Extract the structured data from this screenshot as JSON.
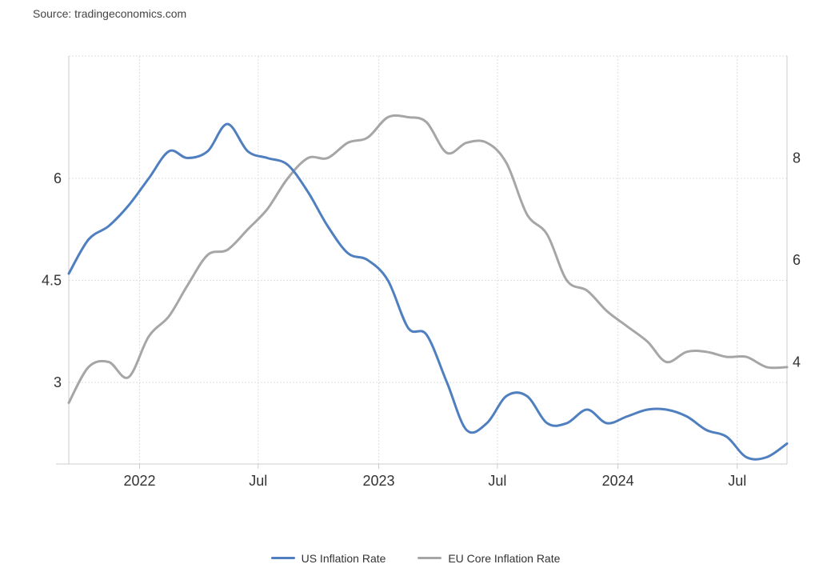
{
  "source": "Source: tradingeconomics.com",
  "colors": {
    "us": "#4f7fbf",
    "eu": "#a6a6a6",
    "grid": "#dedede",
    "axis": "#cccccc"
  },
  "chart_data": {
    "type": "line",
    "x_ticks": [
      {
        "date": "2022-01",
        "label": "2022"
      },
      {
        "date": "2022-07",
        "label": "Jul"
      },
      {
        "date": "2023-01",
        "label": "2023"
      },
      {
        "date": "2023-07",
        "label": "Jul"
      },
      {
        "date": "2024-01",
        "label": "2024"
      },
      {
        "date": "2024-07",
        "label": "Jul"
      }
    ],
    "xlim": [
      "2021-09-15",
      "2024-09-15"
    ],
    "y_left": {
      "ylim": [
        1.8,
        7.8
      ],
      "ticks": [
        3,
        4.5,
        6
      ]
    },
    "y_right": {
      "ylim": [
        2,
        10
      ],
      "ticks": [
        4,
        6,
        8
      ]
    },
    "series": [
      {
        "name": "US Inflation Rate",
        "axis": "left",
        "x": [
          "2021-09-15",
          "2021-10-15",
          "2021-11-15",
          "2021-12-15",
          "2022-01-15",
          "2022-02-15",
          "2022-03-15",
          "2022-04-15",
          "2022-05-15",
          "2022-06-15",
          "2022-07-15",
          "2022-08-15",
          "2022-09-15",
          "2022-10-15",
          "2022-11-15",
          "2022-12-15",
          "2023-01-15",
          "2023-02-15",
          "2023-03-15",
          "2023-04-15",
          "2023-05-15",
          "2023-06-15",
          "2023-07-15",
          "2023-08-15",
          "2023-09-15",
          "2023-10-15",
          "2023-11-15",
          "2023-12-15",
          "2024-01-15",
          "2024-02-15",
          "2024-03-15",
          "2024-04-15",
          "2024-05-15",
          "2024-06-15",
          "2024-07-15",
          "2024-08-15",
          "2024-09-15"
        ],
        "values": [
          4.6,
          5.1,
          5.3,
          5.6,
          6.0,
          6.4,
          6.3,
          6.4,
          6.8,
          6.4,
          6.3,
          6.2,
          5.8,
          5.3,
          4.9,
          4.8,
          4.5,
          3.8,
          3.7,
          3.0,
          2.3,
          2.4,
          2.8,
          2.8,
          2.4,
          2.4,
          2.6,
          2.4,
          2.5,
          2.6,
          2.6,
          2.5,
          2.3,
          2.2,
          1.9,
          1.9,
          2.1
        ]
      },
      {
        "name": "EU Core Inflation Rate",
        "axis": "right",
        "x": [
          "2021-09-15",
          "2021-10-15",
          "2021-11-15",
          "2021-12-15",
          "2022-01-15",
          "2022-02-15",
          "2022-03-15",
          "2022-04-15",
          "2022-05-15",
          "2022-06-15",
          "2022-07-15",
          "2022-08-15",
          "2022-09-15",
          "2022-10-15",
          "2022-11-15",
          "2022-12-15",
          "2023-01-15",
          "2023-02-15",
          "2023-03-15",
          "2023-04-15",
          "2023-05-15",
          "2023-06-15",
          "2023-07-15",
          "2023-08-15",
          "2023-09-15",
          "2023-10-15",
          "2023-11-15",
          "2023-12-15",
          "2024-01-15",
          "2024-02-15",
          "2024-03-15",
          "2024-04-15",
          "2024-05-15",
          "2024-06-15",
          "2024-07-15",
          "2024-08-15",
          "2024-09-15"
        ],
        "values": [
          3.2,
          3.9,
          4.0,
          3.7,
          4.5,
          4.9,
          5.5,
          6.1,
          6.2,
          6.6,
          7.0,
          7.6,
          8.0,
          8.0,
          8.3,
          8.4,
          8.8,
          8.8,
          8.7,
          8.1,
          8.3,
          8.3,
          7.9,
          6.9,
          6.5,
          5.6,
          5.4,
          5.0,
          4.7,
          4.4,
          4.0,
          4.2,
          4.2,
          4.1,
          4.1,
          3.9,
          3.9
        ]
      }
    ],
    "grid": true,
    "legend": "bottom"
  }
}
